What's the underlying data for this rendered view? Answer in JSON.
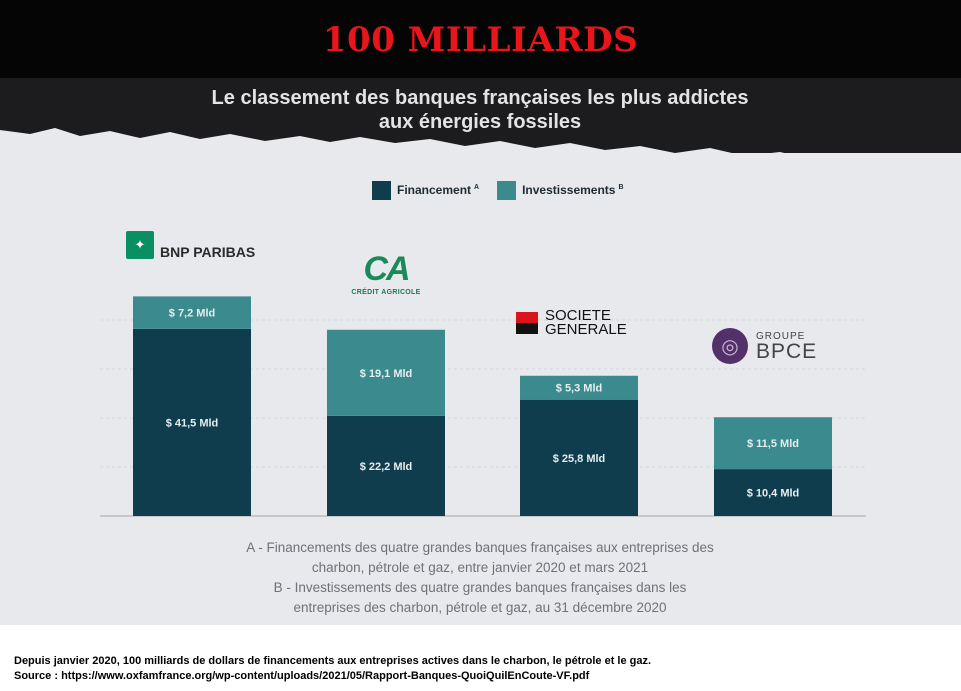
{
  "banner": {
    "headline": "100 MILLIARDS"
  },
  "chart_data": {
    "type": "bar",
    "stacked": true,
    "title_line1": "Le classement des banques françaises les plus addictes",
    "title_line2": "aux énergies fossiles",
    "categories": [
      "BNP PARIBAS",
      "CRÉDIT AGRICOLE",
      "SOCIETE GENERALE",
      "GROUPE BPCE"
    ],
    "series": [
      {
        "name": "Financement",
        "marker": "A",
        "color": "#0f3d4e",
        "values": [
          41.5,
          22.2,
          25.8,
          10.4
        ],
        "labels": [
          "$ 41,5 Mld",
          "$ 22,2 Mld",
          "$ 25,8 Mld",
          "$ 10,4 Mld"
        ]
      },
      {
        "name": "Investissements",
        "marker": "B",
        "color": "#3b8a8e",
        "values": [
          7.2,
          19.1,
          5.3,
          11.5
        ],
        "labels": [
          "$ 7,2 Mld",
          "$ 19,1 Mld",
          "$ 5,3 Mld",
          "$ 11,5 Mld"
        ]
      }
    ],
    "ylim": [
      0,
      55
    ],
    "grid": true,
    "legend_position": "top"
  },
  "logos": {
    "bnp": {
      "name": "BNP PARIBAS",
      "icon": "bnp-stars-icon"
    },
    "ca": {
      "name": "CRÉDIT AGRICOLE",
      "icon": "ca-logo-icon"
    },
    "sg_line1": "SOCIETE",
    "sg_line2": "GENERALE",
    "bpce_line1": "GROUPE",
    "bpce_line2": "BPCE"
  },
  "notes": [
    "A - Financements des quatre grandes banques françaises aux entreprises des",
    "charbon, pétrole et gaz, entre janvier 2020 et mars 2021",
    "B - Investissements des quatre grandes banques françaises dans les",
    "entreprises des charbon, pétrole et gaz, au 31 décembre 2020"
  ],
  "caption": {
    "line1": "Depuis janvier 2020, 100 milliards de dollars de financements aux entreprises actives dans le charbon, le pétrole et le gaz.",
    "line2": "Source : https://www.oxfamfrance.org/wp-content/uploads/2021/05/Rapport-Banques-QuoiQuilEnCoute-VF.pdf"
  }
}
